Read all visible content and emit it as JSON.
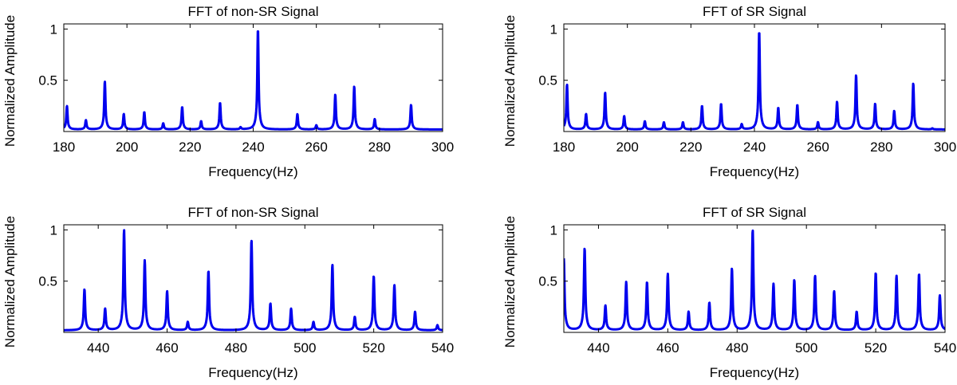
{
  "figure": {
    "background": "#ffffff",
    "line_color": "#0000ee"
  },
  "chart_data": [
    {
      "type": "line",
      "title": "FFT of non-SR Signal",
      "xlabel": "Frequency(Hz)",
      "ylabel": "Normalized Amplitude",
      "xlim": [
        180,
        300
      ],
      "ylim": [
        0,
        1.05
      ],
      "xticks": [
        180,
        200,
        220,
        240,
        260,
        280,
        300
      ],
      "yticks": [
        0.5,
        1
      ],
      "xtick_labels": [
        "180",
        "200",
        "220",
        "240",
        "260",
        "280",
        "300"
      ],
      "ytick_labels": [
        "0.5",
        "1"
      ],
      "baseline": 0.02,
      "peaks": [
        {
          "x": 181,
          "y": 0.25
        },
        {
          "x": 187,
          "y": 0.11
        },
        {
          "x": 193,
          "y": 0.49
        },
        {
          "x": 199,
          "y": 0.17
        },
        {
          "x": 205.5,
          "y": 0.19
        },
        {
          "x": 211.5,
          "y": 0.08
        },
        {
          "x": 217.5,
          "y": 0.24
        },
        {
          "x": 223.5,
          "y": 0.1
        },
        {
          "x": 229.5,
          "y": 0.28
        },
        {
          "x": 236,
          "y": 0.04
        },
        {
          "x": 241.5,
          "y": 1.0
        },
        {
          "x": 254,
          "y": 0.17
        },
        {
          "x": 260,
          "y": 0.06
        },
        {
          "x": 266,
          "y": 0.36
        },
        {
          "x": 272,
          "y": 0.44
        },
        {
          "x": 278.5,
          "y": 0.12
        },
        {
          "x": 290,
          "y": 0.26
        }
      ]
    },
    {
      "type": "line",
      "title": "FFT of SR Signal",
      "xlabel": "Frequency(Hz)",
      "ylabel": "Normalized Amplitude",
      "xlim": [
        180,
        300
      ],
      "ylim": [
        0,
        1.05
      ],
      "xticks": [
        180,
        200,
        220,
        240,
        260,
        280,
        300
      ],
      "yticks": [
        0.5,
        1
      ],
      "xtick_labels": [
        "180",
        "200",
        "220",
        "240",
        "260",
        "280",
        "300"
      ],
      "ytick_labels": [
        "0.5",
        "1"
      ],
      "baseline": 0.02,
      "peaks": [
        {
          "x": 181,
          "y": 0.46
        },
        {
          "x": 187,
          "y": 0.17
        },
        {
          "x": 193,
          "y": 0.38
        },
        {
          "x": 199,
          "y": 0.15
        },
        {
          "x": 205.5,
          "y": 0.1
        },
        {
          "x": 211.5,
          "y": 0.09
        },
        {
          "x": 217.5,
          "y": 0.09
        },
        {
          "x": 223.5,
          "y": 0.25
        },
        {
          "x": 229.5,
          "y": 0.27
        },
        {
          "x": 236,
          "y": 0.07
        },
        {
          "x": 241.5,
          "y": 0.98
        },
        {
          "x": 247.5,
          "y": 0.23
        },
        {
          "x": 253.5,
          "y": 0.26
        },
        {
          "x": 260,
          "y": 0.09
        },
        {
          "x": 266,
          "y": 0.29
        },
        {
          "x": 272,
          "y": 0.55
        },
        {
          "x": 278,
          "y": 0.27
        },
        {
          "x": 284,
          "y": 0.2
        },
        {
          "x": 290,
          "y": 0.47
        },
        {
          "x": 296,
          "y": 0.03
        }
      ]
    },
    {
      "type": "line",
      "title": "FFT of non-SR Signal",
      "xlabel": "Frequency(Hz)",
      "ylabel": "Normalized Amplitude",
      "xlim": [
        430,
        540
      ],
      "ylim": [
        0,
        1.05
      ],
      "xticks": [
        440,
        460,
        480,
        500,
        520,
        540
      ],
      "yticks": [
        0.5,
        1
      ],
      "xtick_labels": [
        "440",
        "460",
        "480",
        "500",
        "520",
        "540"
      ],
      "ytick_labels": [
        "0.5",
        "1"
      ],
      "baseline": 0.02,
      "peaks": [
        {
          "x": 436,
          "y": 0.42
        },
        {
          "x": 442,
          "y": 0.23
        },
        {
          "x": 447.5,
          "y": 1.0
        },
        {
          "x": 453.5,
          "y": 0.7
        },
        {
          "x": 460,
          "y": 0.4
        },
        {
          "x": 466,
          "y": 0.1
        },
        {
          "x": 472,
          "y": 0.6
        },
        {
          "x": 484.5,
          "y": 0.9
        },
        {
          "x": 490,
          "y": 0.28
        },
        {
          "x": 496,
          "y": 0.23
        },
        {
          "x": 502.5,
          "y": 0.1
        },
        {
          "x": 508,
          "y": 0.66
        },
        {
          "x": 514.5,
          "y": 0.15
        },
        {
          "x": 520,
          "y": 0.55
        },
        {
          "x": 526,
          "y": 0.46
        },
        {
          "x": 532,
          "y": 0.2
        },
        {
          "x": 538.5,
          "y": 0.07
        }
      ]
    },
    {
      "type": "line",
      "title": "FFT of SR Signal",
      "xlabel": "Frequency(Hz)",
      "ylabel": "Normalized Amplitude",
      "xlim": [
        430,
        540
      ],
      "ylim": [
        0,
        1.05
      ],
      "xticks": [
        440,
        460,
        480,
        500,
        520,
        540
      ],
      "yticks": [
        0.5,
        1
      ],
      "xtick_labels": [
        "440",
        "460",
        "480",
        "500",
        "520",
        "540"
      ],
      "ytick_labels": [
        "0.5",
        "1"
      ],
      "baseline": 0.02,
      "peaks": [
        {
          "x": 430,
          "y": 0.72
        },
        {
          "x": 436,
          "y": 0.82
        },
        {
          "x": 442,
          "y": 0.26
        },
        {
          "x": 448,
          "y": 0.49
        },
        {
          "x": 454,
          "y": 0.49
        },
        {
          "x": 460,
          "y": 0.57
        },
        {
          "x": 466,
          "y": 0.2
        },
        {
          "x": 472,
          "y": 0.29
        },
        {
          "x": 478.5,
          "y": 0.62
        },
        {
          "x": 484.5,
          "y": 1.0
        },
        {
          "x": 490.5,
          "y": 0.47
        },
        {
          "x": 496.5,
          "y": 0.51
        },
        {
          "x": 502.5,
          "y": 0.55
        },
        {
          "x": 508,
          "y": 0.4
        },
        {
          "x": 514.5,
          "y": 0.2
        },
        {
          "x": 520,
          "y": 0.58
        },
        {
          "x": 526,
          "y": 0.55
        },
        {
          "x": 532.5,
          "y": 0.57
        },
        {
          "x": 538.5,
          "y": 0.36
        }
      ]
    }
  ]
}
